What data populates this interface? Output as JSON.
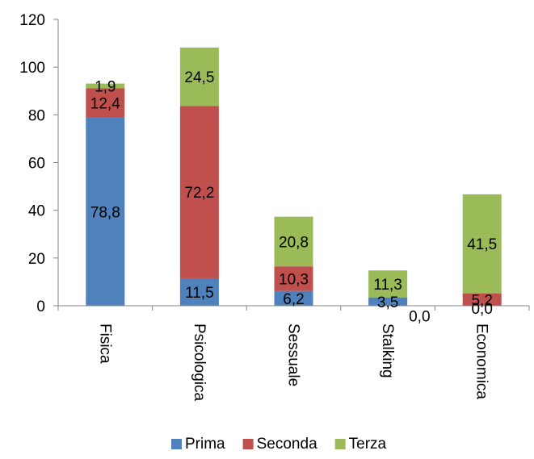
{
  "chart_data": {
    "type": "bar",
    "stacked": true,
    "categories": [
      "Fisica",
      "Psicologica",
      "Sessuale",
      "Stalking",
      "Economica"
    ],
    "series": [
      {
        "name": "Prima",
        "color": "#4F81BD",
        "values": [
          78.8,
          11.5,
          6.2,
          3.5,
          0.0
        ],
        "labels": [
          "78,8",
          "11,5",
          "6,2",
          "3,5",
          "0,0"
        ]
      },
      {
        "name": "Seconda",
        "color": "#C0504D",
        "values": [
          12.4,
          72.2,
          10.3,
          0.0,
          5.2
        ],
        "labels": [
          "12,4",
          "72,2",
          "10,3",
          "0,0",
          "5,2"
        ]
      },
      {
        "name": "Terza",
        "color": "#9BBB59",
        "values": [
          1.9,
          24.5,
          20.8,
          11.3,
          41.5
        ],
        "labels": [
          "1,9",
          "24,5",
          "20,8",
          "11,3",
          "41,5"
        ]
      }
    ],
    "ylim": [
      0,
      120
    ],
    "yticks": [
      0,
      20,
      40,
      60,
      80,
      100,
      120
    ],
    "grid": false,
    "legend": "bottom"
  }
}
